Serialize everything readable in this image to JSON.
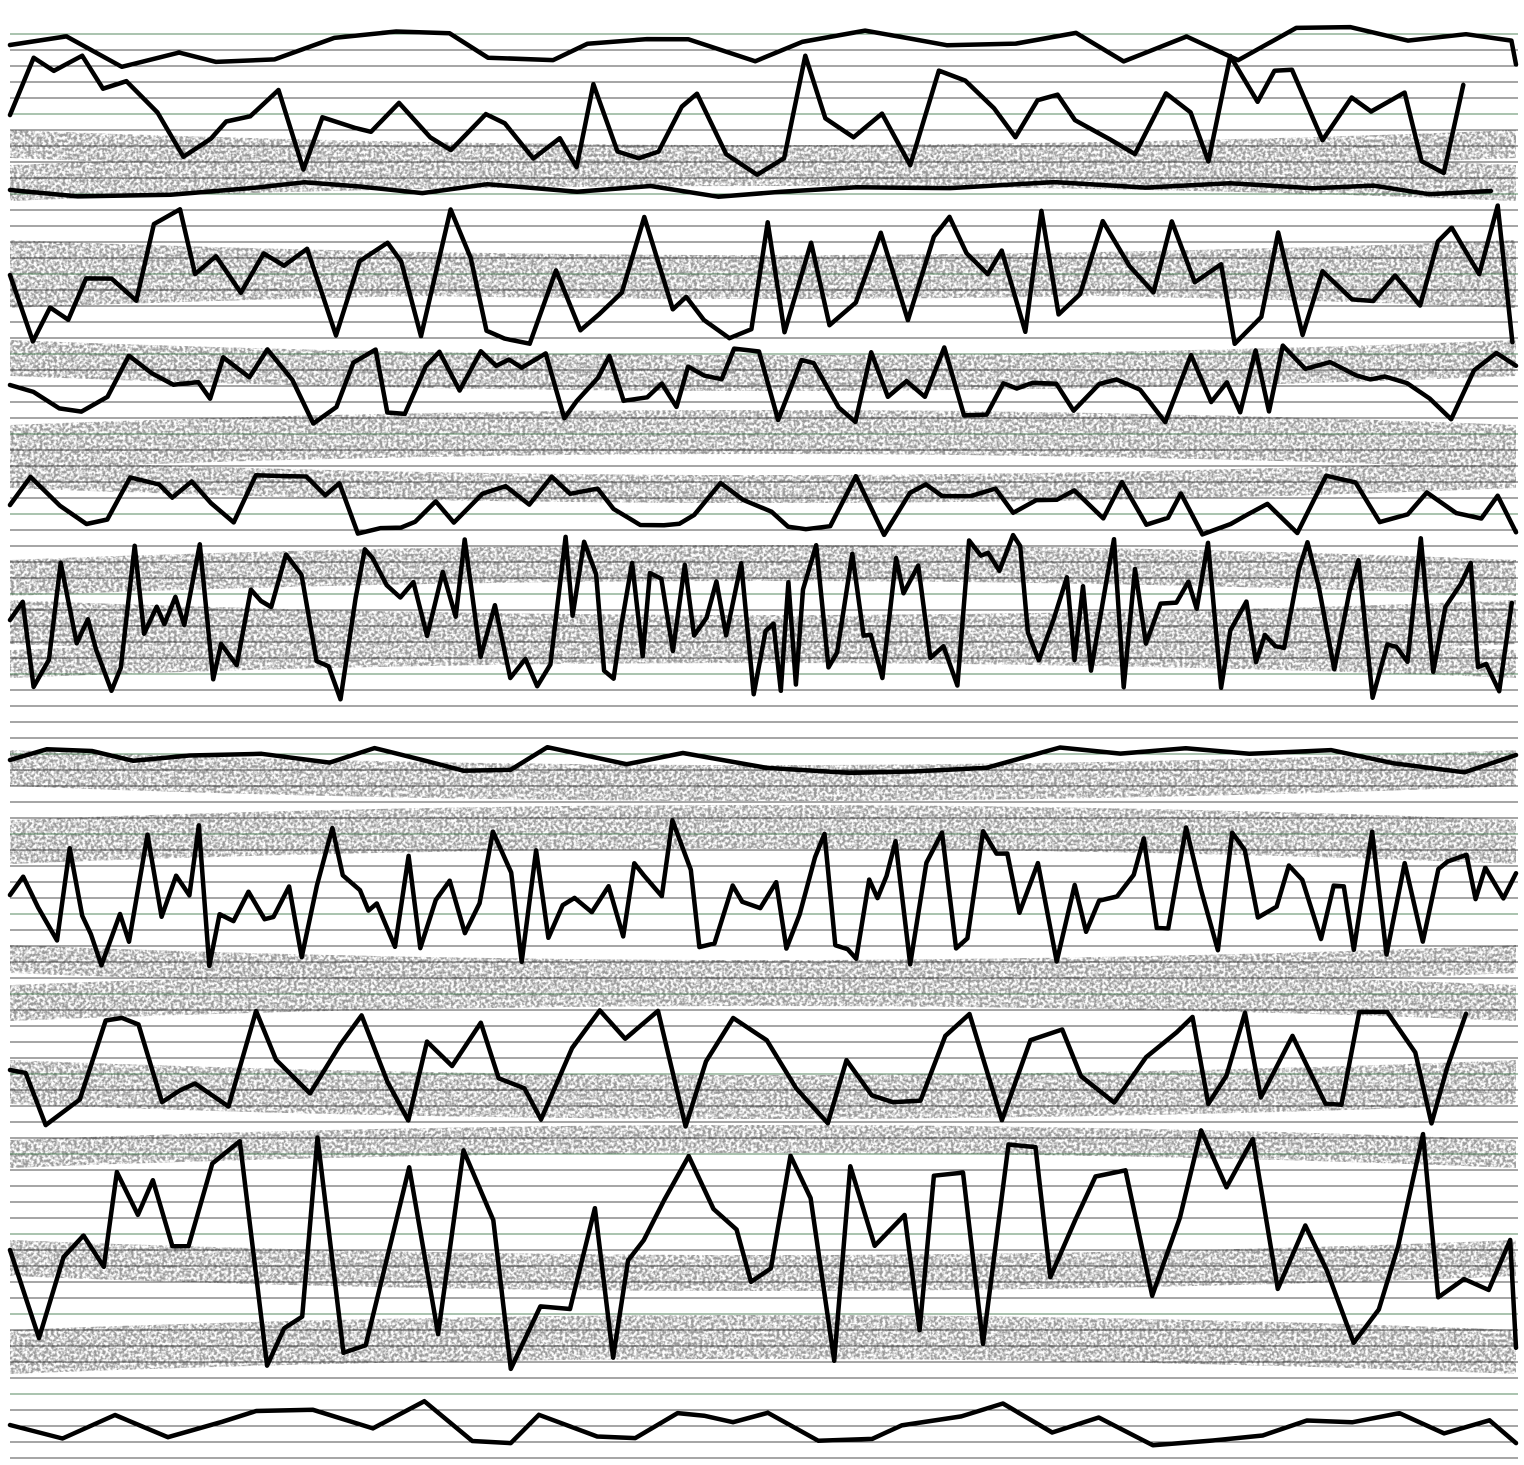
{
  "image": {
    "kind": "abstract-seismograph-drawing",
    "background_color": "#ffffff",
    "trace_color": "#000000",
    "texture_color": "#9a9a9a",
    "rule_color": "#222222",
    "rule_accent_color": "#2e6b3a",
    "trace_count": 12,
    "texture_band_count": 18
  }
}
